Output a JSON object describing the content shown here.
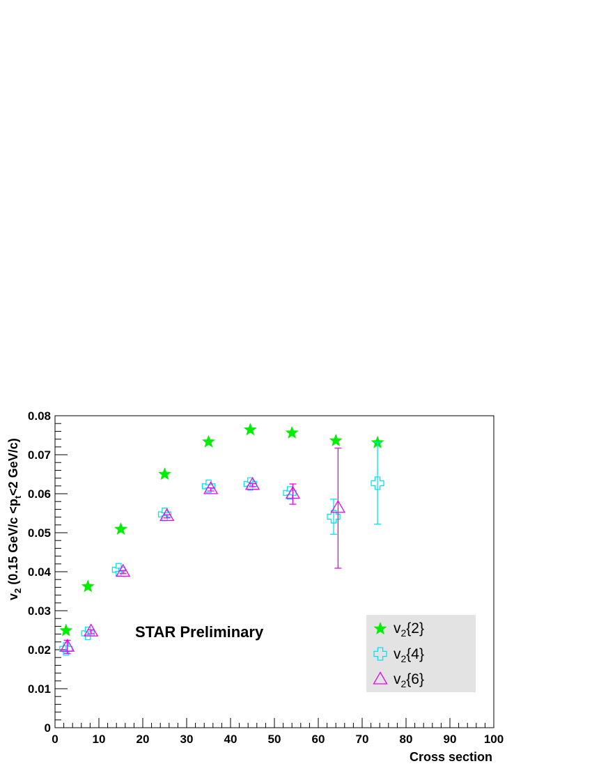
{
  "chart_data": {
    "type": "scatter",
    "xlabel": "Cross section",
    "ylabel_main": "v",
    "ylabel_sub": "2",
    "ylabel_mid": " (0.15 GeV/c <p",
    "ylabel_sub2": "t",
    "ylabel_end": "<2 GeV/c)",
    "annotation": "STAR Preliminary",
    "xlim": [
      0,
      100
    ],
    "ylim": [
      0,
      0.08
    ],
    "x_ticks": [
      0,
      10,
      20,
      30,
      40,
      50,
      60,
      70,
      80,
      90,
      100
    ],
    "y_ticks": [
      0,
      0.01,
      0.02,
      0.03,
      0.04,
      0.05,
      0.06,
      0.07,
      0.08
    ],
    "x_tick_labels": [
      "0",
      "10",
      "20",
      "30",
      "40",
      "50",
      "60",
      "70",
      "80",
      "90",
      "100"
    ],
    "y_tick_labels": [
      "0",
      "0.01",
      "0.02",
      "0.03",
      "0.04",
      "0.05",
      "0.06",
      "0.07",
      "0.08"
    ],
    "legend_position": "bottom-right",
    "series": [
      {
        "name": "v2{2}",
        "label_main": "v",
        "label_sub": "2",
        "label_rest": "{2}",
        "marker": "star",
        "color": "#00ee00",
        "points": [
          {
            "x": 2.5,
            "y": 0.0249,
            "err": 0
          },
          {
            "x": 7.5,
            "y": 0.0362,
            "err": 0
          },
          {
            "x": 15,
            "y": 0.0509,
            "err": 0
          },
          {
            "x": 25,
            "y": 0.065,
            "err": 0
          },
          {
            "x": 35,
            "y": 0.0733,
            "err": 0
          },
          {
            "x": 44.5,
            "y": 0.0764,
            "err": 0
          },
          {
            "x": 54,
            "y": 0.0756,
            "err": 0
          },
          {
            "x": 64,
            "y": 0.0736,
            "err": 0
          },
          {
            "x": 73.5,
            "y": 0.0731,
            "err": 0
          }
        ]
      },
      {
        "name": "v2{4}",
        "label_main": "v",
        "label_sub": "2",
        "label_rest": "{4}",
        "marker": "cross",
        "color": "#00e5ee",
        "points": [
          {
            "x": 2.5,
            "y": 0.0202,
            "err": 0.0008
          },
          {
            "x": 7.5,
            "y": 0.0242,
            "err": 0.0004
          },
          {
            "x": 14.5,
            "y": 0.0405,
            "err": 0.0004
          },
          {
            "x": 25,
            "y": 0.0547,
            "err": 0.0004
          },
          {
            "x": 35,
            "y": 0.0619,
            "err": 0.0004
          },
          {
            "x": 44.5,
            "y": 0.0625,
            "err": 0.0004
          },
          {
            "x": 53.5,
            "y": 0.0602,
            "err": 0.0005
          },
          {
            "x": 63.5,
            "y": 0.0541,
            "err": 0.0045
          },
          {
            "x": 73.5,
            "y": 0.0627,
            "err": 0.0105
          }
        ]
      },
      {
        "name": "v2{6}",
        "label_main": "v",
        "label_sub": "2",
        "label_rest": "{6}",
        "marker": "triangle",
        "color": "#ee00ee",
        "points": [
          {
            "x": 2.8,
            "y": 0.0207,
            "err": 0.0017
          },
          {
            "x": 8.2,
            "y": 0.0246,
            "err": 0.0005
          },
          {
            "x": 15.5,
            "y": 0.0399,
            "err": 0.0004
          },
          {
            "x": 25.5,
            "y": 0.0542,
            "err": 0.0004
          },
          {
            "x": 35.5,
            "y": 0.0611,
            "err": 0.0004
          },
          {
            "x": 45,
            "y": 0.0622,
            "err": 0.0004
          },
          {
            "x": 54.2,
            "y": 0.0599,
            "err": 0.0026
          },
          {
            "x": 64.5,
            "y": 0.0563,
            "err": 0.0154
          }
        ]
      }
    ]
  }
}
